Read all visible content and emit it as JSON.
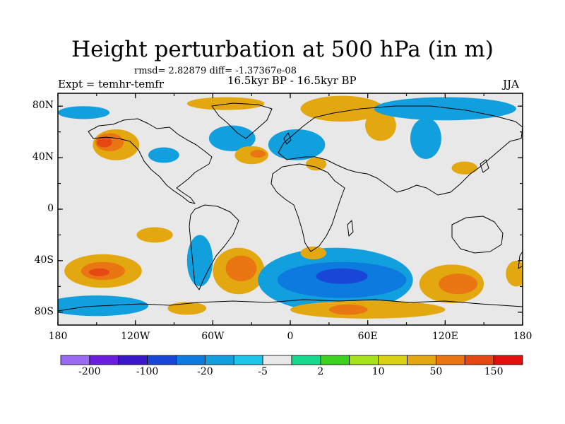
{
  "title": "Height perturbation at 500 hPa (in m)",
  "stats": "rmsd= 2.82879 diff= -1.37367e-08",
  "left_label": "Expt = temhr-temfr",
  "center_label": "16.5kyr BP - 16.5kyr BP",
  "right_label": "JJA",
  "axes": {
    "lat_ticks": [
      "80N",
      "40N",
      "0",
      "40S",
      "80S"
    ],
    "lat_values": [
      80,
      40,
      0,
      -40,
      -80
    ],
    "lon_ticks": [
      "180",
      "120W",
      "60W",
      "0",
      "60E",
      "120E",
      "180"
    ],
    "lon_values": [
      -180,
      -120,
      -60,
      0,
      60,
      120,
      180
    ],
    "lat_range": [
      -90,
      90
    ],
    "lon_range": [
      -180,
      180
    ]
  },
  "colorbar": {
    "colors": [
      "#9a6bf2",
      "#6a1fe0",
      "#3a18c8",
      "#1a46d8",
      "#0d7ae0",
      "#119fdd",
      "#1dc6e8",
      "#e8e8e8",
      "#17d98e",
      "#3cd11e",
      "#a8e21a",
      "#d8d212",
      "#e3a70f",
      "#e97613",
      "#e64814",
      "#e20f0f"
    ],
    "labels": [
      "-200",
      "-100",
      "-20",
      "-5",
      "2",
      "10",
      "50",
      "150"
    ],
    "label_after_box": [
      1,
      3,
      5,
      7,
      9,
      11,
      13,
      15
    ]
  },
  "map": {
    "ocean_color": "#e8e8e8",
    "anomaly_regions": [
      {
        "lon": -135,
        "lat": 50,
        "rx": 18,
        "ry": 12,
        "level": 5
      },
      {
        "lon": -140,
        "lat": 52,
        "rx": 11,
        "ry": 7,
        "level": 6
      },
      {
        "lon": -144,
        "lat": 52,
        "rx": 6,
        "ry": 4,
        "level": 7
      },
      {
        "lon": -98,
        "lat": 42,
        "rx": 12,
        "ry": 6,
        "level": -2
      },
      {
        "lon": -45,
        "lat": 55,
        "rx": 18,
        "ry": 10,
        "level": -2
      },
      {
        "lon": -50,
        "lat": 82,
        "rx": 30,
        "ry": 5,
        "level": 5
      },
      {
        "lon": -30,
        "lat": 42,
        "rx": 13,
        "ry": 7,
        "level": 5
      },
      {
        "lon": -25,
        "lat": 43,
        "rx": 6,
        "ry": 3,
        "level": 6
      },
      {
        "lon": 5,
        "lat": 50,
        "rx": 22,
        "ry": 12,
        "level": -2
      },
      {
        "lon": 20,
        "lat": 35,
        "rx": 8,
        "ry": 5,
        "level": 5
      },
      {
        "lon": 40,
        "lat": 78,
        "rx": 32,
        "ry": 10,
        "level": 5
      },
      {
        "lon": 70,
        "lat": 65,
        "rx": 12,
        "ry": 12,
        "level": 5
      },
      {
        "lon": 120,
        "lat": 78,
        "rx": 55,
        "ry": 9,
        "level": -2
      },
      {
        "lon": 105,
        "lat": 55,
        "rx": 12,
        "ry": 16,
        "level": -2
      },
      {
        "lon": 135,
        "lat": 32,
        "rx": 10,
        "ry": 5,
        "level": 5
      },
      {
        "lon": -160,
        "lat": 75,
        "rx": 20,
        "ry": 5,
        "level": -2
      },
      {
        "lon": -105,
        "lat": -20,
        "rx": 14,
        "ry": 6,
        "level": 5
      },
      {
        "lon": -145,
        "lat": -48,
        "rx": 30,
        "ry": 13,
        "level": 5
      },
      {
        "lon": -145,
        "lat": -48,
        "rx": 17,
        "ry": 7,
        "level": 6
      },
      {
        "lon": -148,
        "lat": -49,
        "rx": 8,
        "ry": 3,
        "level": 7
      },
      {
        "lon": -150,
        "lat": -75,
        "rx": 40,
        "ry": 8,
        "level": -2
      },
      {
        "lon": -70,
        "lat": -40,
        "rx": 10,
        "ry": 20,
        "level": -2
      },
      {
        "lon": -40,
        "lat": -48,
        "rx": 20,
        "ry": 18,
        "level": 5
      },
      {
        "lon": -38,
        "lat": -46,
        "rx": 12,
        "ry": 10,
        "level": 6
      },
      {
        "lon": -80,
        "lat": -77,
        "rx": 15,
        "ry": 5,
        "level": 5
      },
      {
        "lon": 35,
        "lat": -55,
        "rx": 60,
        "ry": 25,
        "level": -2
      },
      {
        "lon": 40,
        "lat": -55,
        "rx": 50,
        "ry": 14,
        "level": -3
      },
      {
        "lon": 40,
        "lat": -52,
        "rx": 20,
        "ry": 6,
        "level": -4
      },
      {
        "lon": 18,
        "lat": -34,
        "rx": 10,
        "ry": 5,
        "level": 5
      },
      {
        "lon": 125,
        "lat": -58,
        "rx": 25,
        "ry": 15,
        "level": 5
      },
      {
        "lon": 130,
        "lat": -58,
        "rx": 15,
        "ry": 8,
        "level": 6
      },
      {
        "lon": 60,
        "lat": -78,
        "rx": 60,
        "ry": 7,
        "level": 5
      },
      {
        "lon": 45,
        "lat": -78,
        "rx": 15,
        "ry": 4,
        "level": 6
      },
      {
        "lon": 175,
        "lat": -50,
        "rx": 8,
        "ry": 10,
        "level": 5
      }
    ]
  }
}
